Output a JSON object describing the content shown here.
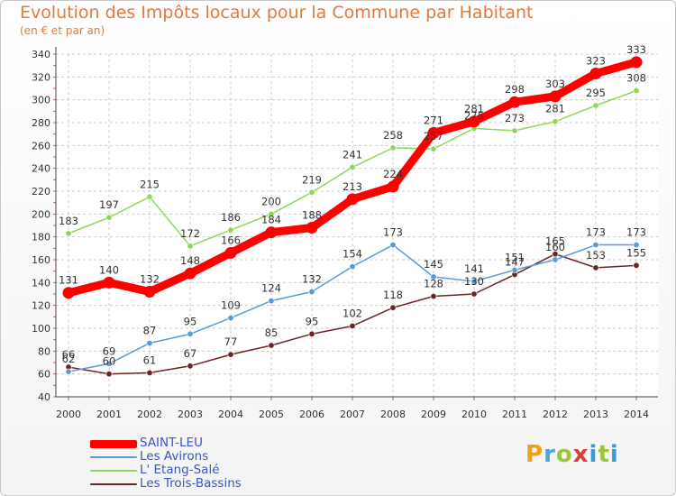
{
  "title": "Evolution des Impôts locaux pour la Commune par Habitant",
  "subtitle": "(en € et par an)",
  "logo_text": "Proxiti",
  "chart_data": {
    "type": "line",
    "title": "Evolution des Impôts locaux pour la Commune par Habitant",
    "subtitle": "(en € et par an)",
    "xlabel": "",
    "ylabel": "",
    "x": [
      "2000",
      "2001",
      "2002",
      "2003",
      "2004",
      "2005",
      "2006",
      "2007",
      "2008",
      "2009",
      "2010",
      "2011",
      "2012",
      "2013",
      "2014"
    ],
    "ylim": [
      40,
      340
    ],
    "yticks": [
      40,
      60,
      80,
      100,
      120,
      140,
      160,
      180,
      200,
      220,
      240,
      260,
      280,
      300,
      320,
      340
    ],
    "grid": true,
    "legend_position": "bottom-left",
    "series": [
      {
        "name": "SAINT-LEU",
        "color": "#ff0000",
        "values": [
          131,
          140,
          132,
          148,
          166,
          184,
          188,
          213,
          224,
          271,
          281,
          298,
          303,
          323,
          333
        ]
      },
      {
        "name": "Les Avirons",
        "color": "#5b9bd5",
        "values": [
          62,
          69,
          87,
          95,
          109,
          124,
          132,
          154,
          173,
          145,
          141,
          151,
          160,
          173,
          173
        ]
      },
      {
        "name": "L' Etang-Salé",
        "color": "#8ed65a",
        "values": [
          183,
          197,
          215,
          172,
          186,
          200,
          219,
          241,
          258,
          257,
          275,
          273,
          281,
          295,
          308
        ]
      },
      {
        "name": "Les Trois-Bassins",
        "color": "#6b2424",
        "values": [
          66,
          60,
          61,
          67,
          77,
          85,
          95,
          102,
          118,
          128,
          130,
          147,
          165,
          153,
          155
        ]
      }
    ]
  }
}
